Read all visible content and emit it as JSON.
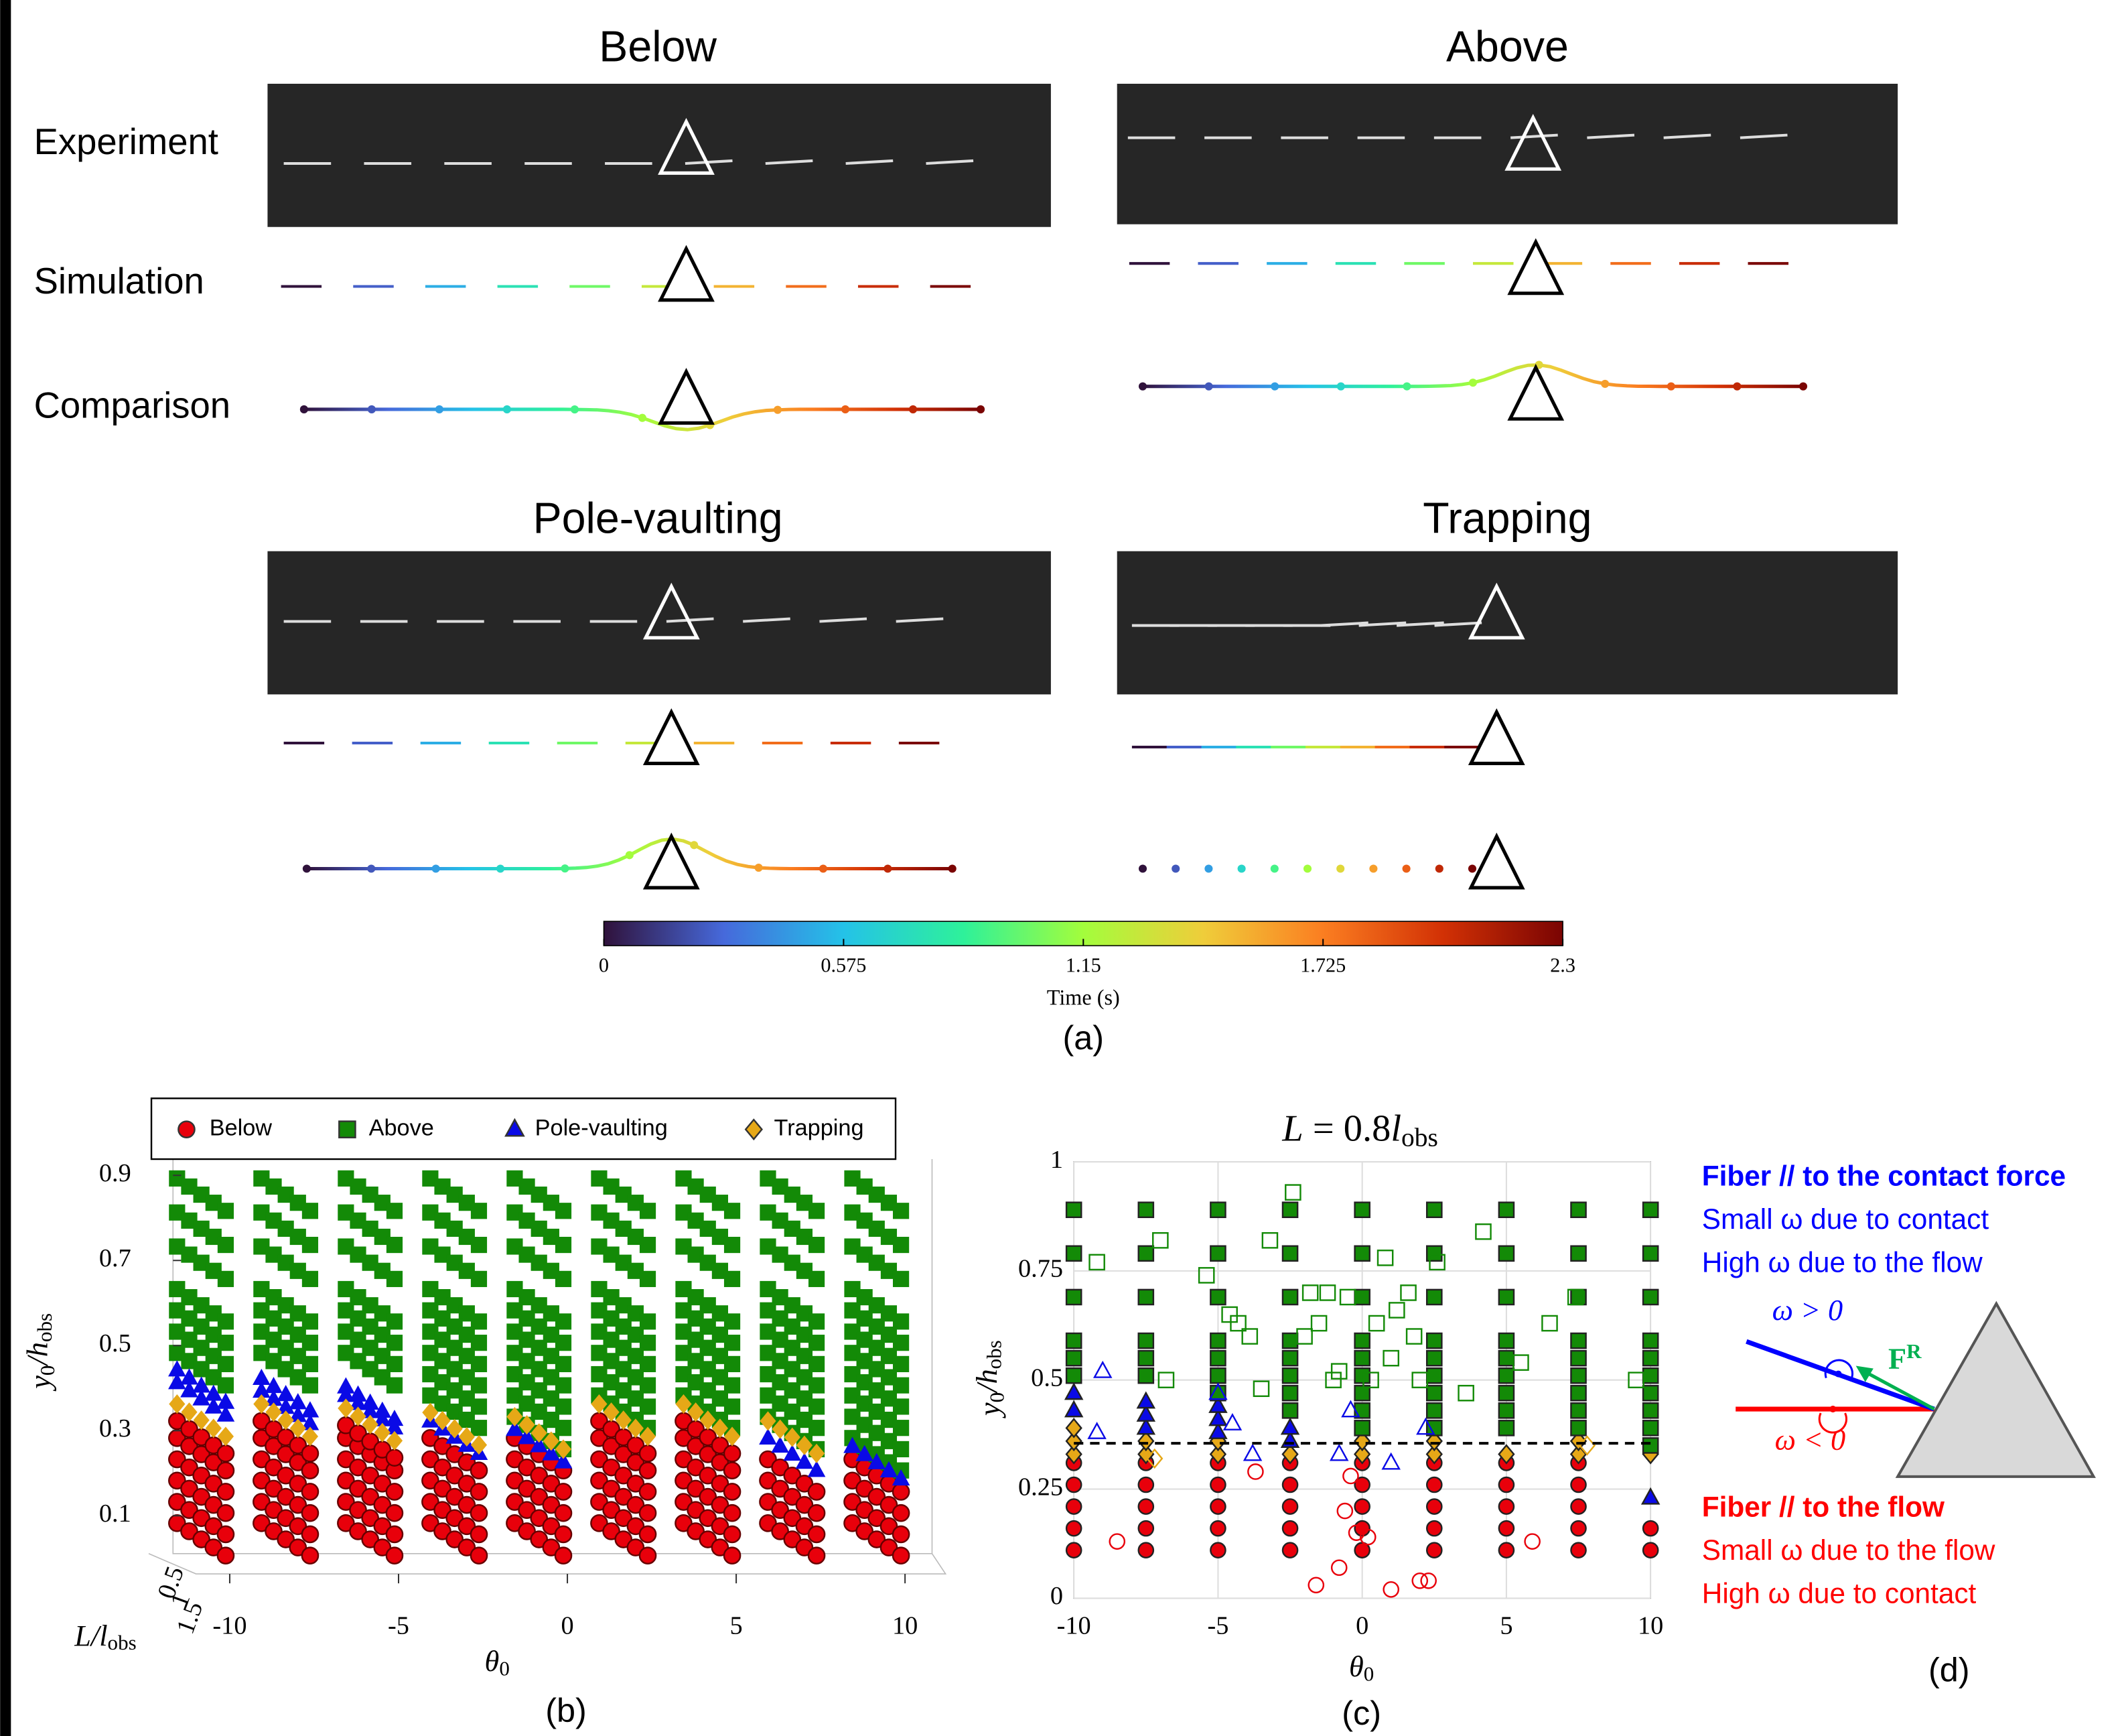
{
  "panel_a": {
    "titles": [
      "Below",
      "Above",
      "Pole-vaulting",
      "Trapping"
    ],
    "row_labels": [
      "Experiment",
      "Simulation",
      "Comparison"
    ],
    "colorbar": {
      "label": "Time (s)",
      "lim": [
        0,
        2.3
      ],
      "ticks": [
        0,
        0.575,
        1.15,
        1.725,
        2.3
      ],
      "colors": [
        "#30123b",
        "#4669db",
        "#24c2e8",
        "#2ef19a",
        "#a3fd3c",
        "#efcd3a",
        "#fb7e21",
        "#d23105",
        "#7a0403"
      ]
    },
    "caption": "(a)"
  },
  "panel_b": {
    "columns": [
      -10,
      -7.5,
      -5,
      -2.5,
      0,
      2.5,
      5,
      7.5,
      10
    ],
    "series": [
      {
        "name": "Below",
        "color": "#e8000b",
        "marker": "circle",
        "values": [
          [
            0.07,
            0.12,
            0.17,
            0.22,
            0.27,
            0.31
          ],
          [
            0.07,
            0.12,
            0.17,
            0.22,
            0.27,
            0.31
          ],
          [
            0.07,
            0.12,
            0.17,
            0.22,
            0.27,
            0.3
          ],
          [
            0.07,
            0.12,
            0.17,
            0.22,
            0.27
          ],
          [
            0.07,
            0.12,
            0.17,
            0.22,
            0.27
          ],
          [
            0.07,
            0.12,
            0.17,
            0.22,
            0.27,
            0.31
          ],
          [
            0.07,
            0.12,
            0.17,
            0.22,
            0.27,
            0.31
          ],
          [
            0.07,
            0.12,
            0.17,
            0.22
          ],
          [
            0.07,
            0.12,
            0.17,
            0.22
          ]
        ]
      },
      {
        "name": "Above",
        "color": "#138a07",
        "marker": "square",
        "values": [
          [
            0.88,
            0.8,
            0.72,
            0.62,
            0.57,
            0.52,
            0.47
          ],
          [
            0.88,
            0.8,
            0.72,
            0.62,
            0.57,
            0.52,
            0.47
          ],
          [
            0.88,
            0.8,
            0.72,
            0.62,
            0.57,
            0.52,
            0.47
          ],
          [
            0.88,
            0.8,
            0.72,
            0.62,
            0.57,
            0.52,
            0.47,
            0.42,
            0.37
          ],
          [
            0.88,
            0.8,
            0.72,
            0.62,
            0.57,
            0.52,
            0.47,
            0.42,
            0.37,
            0.32
          ],
          [
            0.88,
            0.8,
            0.72,
            0.62,
            0.57,
            0.52,
            0.47,
            0.42,
            0.37
          ],
          [
            0.88,
            0.8,
            0.72,
            0.62,
            0.57,
            0.52,
            0.47,
            0.42,
            0.37
          ],
          [
            0.88,
            0.8,
            0.72,
            0.62,
            0.57,
            0.52,
            0.47,
            0.42,
            0.37,
            0.32
          ],
          [
            0.88,
            0.8,
            0.72,
            0.62,
            0.57,
            0.52,
            0.47,
            0.42,
            0.37,
            0.32,
            0.27
          ]
        ]
      },
      {
        "name": "Pole-vaulting",
        "color": "#0a0ae6",
        "marker": "triangle",
        "values": [
          [
            0.4,
            0.43
          ],
          [
            0.38,
            0.41
          ],
          [
            0.37,
            0.39
          ],
          [
            0.31
          ],
          [
            0.29
          ],
          [],
          [],
          [
            0.27
          ],
          [
            0.25
          ]
        ]
      },
      {
        "name": "Trapping",
        "color": "#e6a817",
        "marker": "diamond",
        "values": [
          [
            0.35
          ],
          [
            0.35
          ],
          [
            0.34
          ],
          [
            0.33
          ],
          [
            0.32
          ],
          [
            0.35
          ],
          [
            0.35
          ],
          [
            0.31
          ],
          []
        ]
      }
    ],
    "ylabel": [
      {
        "t": "y",
        "sub": false
      },
      {
        "t": "0",
        "sub": true
      },
      {
        "t": "/h",
        "sub": false
      },
      {
        "t": "obs",
        "sub": true
      }
    ],
    "xlabel": [
      {
        "t": "θ",
        "sub": false
      },
      {
        "t": "0",
        "sub": true
      }
    ],
    "zlabel": [
      {
        "t": "L/l",
        "sub": false
      },
      {
        "t": "obs",
        "sub": true
      }
    ],
    "ylim": [
      0.05,
      0.95
    ],
    "yticks": [
      0.1,
      0.3,
      0.5,
      0.7,
      0.9
    ],
    "xlim": [
      -11,
      11
    ],
    "xticks": [
      -10,
      -5,
      0,
      5,
      10
    ],
    "zticks": [
      0.5,
      1,
      1.5
    ],
    "caption": "(b)"
  },
  "panel_c": {
    "title": [
      {
        "t": "L",
        "sub": false
      },
      {
        "t": " = 0.8",
        "sub": false
      },
      {
        "t": "l",
        "sub": false
      },
      {
        "t": "obs",
        "sub": true
      }
    ],
    "ylabel": [
      {
        "t": "y",
        "sub": false
      },
      {
        "t": "0",
        "sub": true
      },
      {
        "t": "/h",
        "sub": false
      },
      {
        "t": "obs",
        "sub": true
      }
    ],
    "xlabel": [
      {
        "t": "θ",
        "sub": false
      },
      {
        "t": "0",
        "sub": true
      }
    ],
    "xlim": [
      -10,
      10
    ],
    "ylim": [
      0,
      1
    ],
    "xticks": [
      -10,
      -5,
      0,
      5,
      10
    ],
    "yticks": [
      0,
      0.25,
      0.5,
      0.75,
      1
    ],
    "grid": true,
    "threshold": 0.355,
    "columns": [
      -10,
      -7.5,
      -5,
      -2.5,
      0,
      2.5,
      5,
      7.5,
      10
    ],
    "filled": [
      {
        "name": "Below",
        "color": "#e8000b",
        "marker": "circle",
        "values": [
          [
            0.11,
            0.16,
            0.21,
            0.26,
            0.31
          ],
          [
            0.11,
            0.16,
            0.21,
            0.26,
            0.31
          ],
          [
            0.11,
            0.16,
            0.21,
            0.26,
            0.31
          ],
          [
            0.11,
            0.16,
            0.21,
            0.26,
            0.31
          ],
          [
            0.11,
            0.16,
            0.21,
            0.26,
            0.31
          ],
          [
            0.11,
            0.16,
            0.21,
            0.26,
            0.31
          ],
          [
            0.11,
            0.16,
            0.21,
            0.26,
            0.31
          ],
          [
            0.11,
            0.16,
            0.21,
            0.26,
            0.31
          ],
          [
            0.11,
            0.16
          ]
        ]
      },
      {
        "name": "Trapping",
        "color": "#e6a817",
        "marker": "diamond",
        "values": [
          [
            0.33,
            0.36,
            0.39
          ],
          [
            0.33,
            0.36
          ],
          [
            0.33,
            0.36
          ],
          [
            0.33
          ],
          [
            0.33,
            0.36
          ],
          [
            0.33,
            0.36
          ],
          [
            0.33
          ],
          [
            0.33,
            0.36
          ],
          [
            0.33
          ]
        ]
      },
      {
        "name": "Pole-vaulting",
        "color": "#0a0ae6",
        "marker": "triangle",
        "values": [
          [
            0.43,
            0.47
          ],
          [
            0.39,
            0.42,
            0.45
          ],
          [
            0.38,
            0.41,
            0.44
          ],
          [
            0.36,
            0.39
          ],
          [],
          [],
          [],
          [],
          [
            0.23
          ]
        ]
      },
      {
        "name": "Above",
        "color": "#138a07",
        "marker": "square",
        "values": [
          [
            0.89,
            0.79,
            0.69,
            0.59,
            0.55,
            0.51
          ],
          [
            0.89,
            0.79,
            0.69,
            0.59,
            0.55,
            0.51
          ],
          [
            0.89,
            0.79,
            0.69,
            0.59,
            0.55,
            0.51,
            0.47
          ],
          [
            0.89,
            0.79,
            0.69,
            0.59,
            0.55,
            0.51,
            0.47,
            0.43
          ],
          [
            0.89,
            0.79,
            0.69,
            0.59,
            0.55,
            0.51,
            0.47,
            0.43,
            0.39
          ],
          [
            0.89,
            0.79,
            0.69,
            0.59,
            0.55,
            0.51,
            0.47,
            0.43,
            0.39
          ],
          [
            0.89,
            0.79,
            0.69,
            0.59,
            0.55,
            0.51,
            0.47,
            0.43,
            0.39
          ],
          [
            0.89,
            0.79,
            0.69,
            0.59,
            0.55,
            0.51,
            0.47,
            0.43,
            0.39
          ],
          [
            0.89,
            0.79,
            0.69,
            0.59,
            0.55,
            0.51,
            0.47,
            0.43,
            0.39,
            0.35
          ]
        ]
      }
    ],
    "open": [
      {
        "name": "Above",
        "color": "#138a07",
        "marker": "square",
        "x": [
          -9.2,
          -7,
          -6.8,
          -5.4,
          -4.6,
          -4.3,
          -3.9,
          -3.5,
          -3.2,
          -2.4,
          -2,
          -1.8,
          -1.5,
          -1.2,
          -1,
          -0.8,
          -0.5,
          0.3,
          0.5,
          0.8,
          1,
          1.2,
          1.6,
          1.8,
          2,
          2.6,
          3.6,
          4.2,
          5.5,
          6.5,
          7.4,
          9.5
        ],
        "y": [
          0.77,
          0.82,
          0.5,
          0.74,
          0.65,
          0.63,
          0.6,
          0.48,
          0.82,
          0.93,
          0.6,
          0.7,
          0.63,
          0.7,
          0.5,
          0.52,
          0.69,
          0.5,
          0.63,
          0.78,
          0.55,
          0.66,
          0.7,
          0.6,
          0.5,
          0.77,
          0.47,
          0.84,
          0.54,
          0.63,
          0.69,
          0.5
        ]
      },
      {
        "name": "Pole-vaulting",
        "color": "#0a0ae6",
        "marker": "triangle",
        "x": [
          -9,
          -9.2,
          -5,
          -4.5,
          -3.8,
          -0.8,
          -0.4,
          1,
          2.2
        ],
        "y": [
          0.52,
          0.38,
          0.47,
          0.4,
          0.33,
          0.33,
          0.43,
          0.31,
          0.39
        ]
      },
      {
        "name": "Below",
        "color": "#e8000b",
        "marker": "circle",
        "x": [
          -8.5,
          -3.7,
          -1.6,
          -0.8,
          -0.6,
          -0.4,
          -0.2,
          0.2,
          1,
          2,
          2.3,
          5.9
        ],
        "y": [
          0.13,
          0.29,
          0.03,
          0.07,
          0.2,
          0.28,
          0.15,
          0.14,
          0.02,
          0.04,
          0.04,
          0.13
        ]
      },
      {
        "name": "Trapping",
        "color": "#e6a817",
        "marker": "diamond",
        "x": [
          -7.2,
          7.8
        ],
        "y": [
          0.32,
          0.35
        ]
      }
    ],
    "caption": "(c)"
  },
  "panel_d": {
    "top": {
      "heading": "Fiber // to the contact force",
      "lines": [
        "Small ω due to contact",
        "High ω due to the flow"
      ]
    },
    "bottom": {
      "heading": "Fiber // to the flow",
      "lines": [
        "Small ω due to the flow",
        "High ω due to contact"
      ]
    },
    "omega_pos": "ω > 0",
    "omega_neg": "ω < 0",
    "force": [
      {
        "t": "F",
        "sub": false
      },
      {
        "t": "R",
        "sup": true
      }
    ],
    "caption": "(d)"
  }
}
